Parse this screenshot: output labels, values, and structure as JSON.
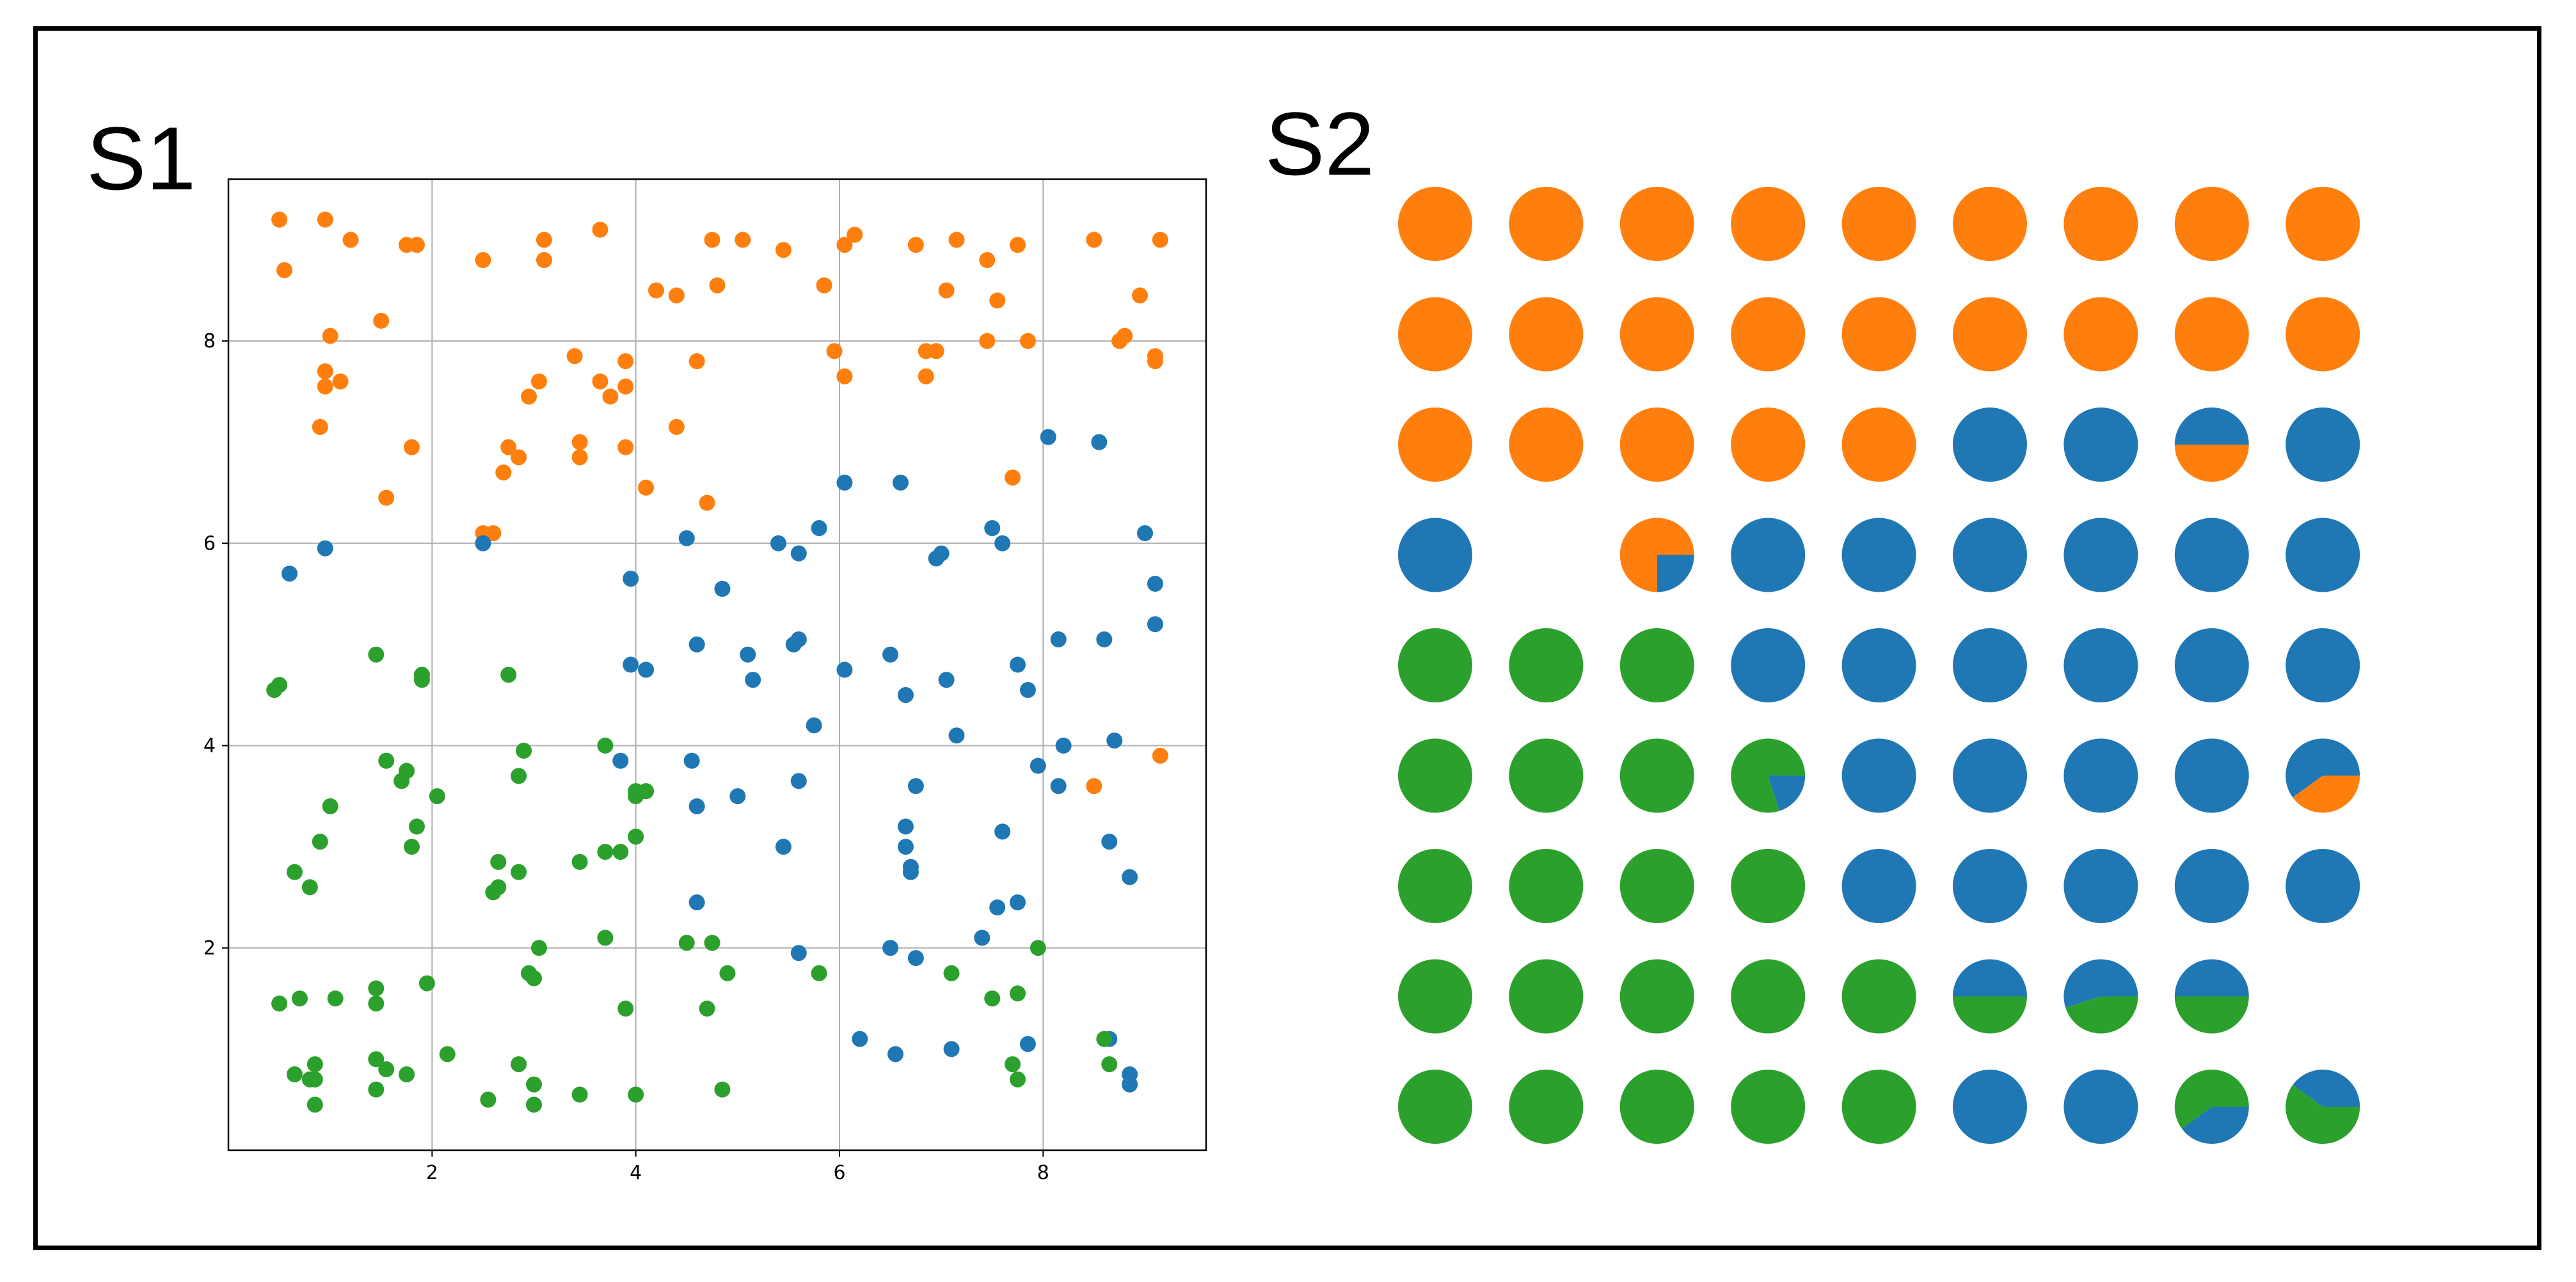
{
  "panels": {
    "s1_label": "S1",
    "s2_label": "S2"
  },
  "colors": {
    "orange": "#ff7f0e",
    "blue": "#1f77b4",
    "green": "#2ca02c",
    "grid": "#b0b0b0",
    "frame": "#000000"
  },
  "chart_data": [
    {
      "type": "scatter",
      "title": "",
      "xlabel": "",
      "ylabel": "",
      "xlim": [
        0.0,
        9.6
      ],
      "ylim": [
        0.0,
        9.6
      ],
      "xticks": [
        2,
        4,
        6,
        8
      ],
      "yticks": [
        2,
        4,
        6,
        8
      ],
      "grid": true,
      "series": [
        {
          "color": "#ff7f0e",
          "points": [
            [
              0.5,
              9.2
            ],
            [
              0.55,
              8.7
            ],
            [
              0.95,
              9.2
            ],
            [
              1.2,
              9.0
            ],
            [
              1.5,
              8.2
            ],
            [
              1.75,
              8.95
            ],
            [
              1.85,
              8.95
            ],
            [
              2.5,
              8.8
            ],
            [
              3.1,
              9.0
            ],
            [
              3.1,
              8.8
            ],
            [
              3.65,
              9.1
            ],
            [
              4.2,
              8.5
            ],
            [
              4.4,
              8.45
            ],
            [
              4.75,
              9.0
            ],
            [
              4.8,
              8.55
            ],
            [
              5.05,
              9.0
            ],
            [
              5.45,
              8.9
            ],
            [
              5.85,
              8.55
            ],
            [
              6.05,
              8.95
            ],
            [
              6.15,
              9.05
            ],
            [
              6.75,
              8.95
            ],
            [
              7.15,
              9.0
            ],
            [
              7.05,
              8.5
            ],
            [
              7.45,
              8.8
            ],
            [
              7.55,
              8.4
            ],
            [
              7.75,
              8.95
            ],
            [
              8.5,
              9.0
            ],
            [
              8.95,
              8.45
            ],
            [
              9.15,
              9.0
            ],
            [
              1.0,
              8.05
            ],
            [
              0.95,
              7.7
            ],
            [
              0.95,
              7.55
            ],
            [
              1.1,
              7.6
            ],
            [
              0.9,
              7.15
            ],
            [
              1.55,
              6.45
            ],
            [
              1.8,
              6.95
            ],
            [
              2.5,
              6.1
            ],
            [
              2.6,
              6.1
            ],
            [
              2.7,
              6.7
            ],
            [
              2.75,
              6.95
            ],
            [
              2.85,
              6.85
            ],
            [
              2.95,
              7.45
            ],
            [
              3.05,
              7.6
            ],
            [
              3.4,
              7.85
            ],
            [
              3.45,
              7.0
            ],
            [
              3.45,
              6.85
            ],
            [
              3.65,
              7.6
            ],
            [
              3.75,
              7.45
            ],
            [
              3.9,
              7.8
            ],
            [
              3.9,
              7.55
            ],
            [
              3.9,
              6.95
            ],
            [
              4.1,
              6.55
            ],
            [
              4.4,
              7.15
            ],
            [
              4.6,
              7.8
            ],
            [
              4.7,
              6.4
            ],
            [
              5.95,
              7.9
            ],
            [
              6.05,
              7.65
            ],
            [
              6.85,
              7.9
            ],
            [
              6.85,
              7.65
            ],
            [
              6.95,
              7.9
            ],
            [
              7.45,
              8.0
            ],
            [
              7.7,
              6.65
            ],
            [
              7.85,
              8.0
            ],
            [
              8.75,
              8.0
            ],
            [
              8.8,
              8.05
            ],
            [
              9.1,
              7.8
            ],
            [
              9.1,
              7.85
            ],
            [
              8.5,
              3.6
            ],
            [
              9.15,
              3.9
            ]
          ]
        },
        {
          "color": "#1f77b4",
          "points": [
            [
              0.6,
              5.7
            ],
            [
              0.95,
              5.95
            ],
            [
              2.5,
              6.0
            ],
            [
              3.95,
              5.65
            ],
            [
              4.5,
              6.05
            ],
            [
              4.85,
              5.55
            ],
            [
              5.4,
              6.0
            ],
            [
              5.6,
              5.9
            ],
            [
              5.8,
              6.15
            ],
            [
              6.05,
              6.6
            ],
            [
              6.6,
              6.6
            ],
            [
              6.95,
              5.85
            ],
            [
              7.0,
              5.9
            ],
            [
              7.5,
              6.15
            ],
            [
              7.6,
              6.0
            ],
            [
              8.05,
              7.05
            ],
            [
              8.55,
              7.0
            ],
            [
              9.0,
              6.1
            ],
            [
              9.1,
              5.6
            ],
            [
              3.95,
              4.8
            ],
            [
              4.1,
              4.75
            ],
            [
              4.6,
              5.0
            ],
            [
              5.1,
              4.9
            ],
            [
              5.15,
              4.65
            ],
            [
              5.55,
              5.0
            ],
            [
              5.6,
              5.05
            ],
            [
              6.05,
              4.75
            ],
            [
              6.5,
              4.9
            ],
            [
              6.65,
              4.5
            ],
            [
              7.05,
              4.65
            ],
            [
              7.75,
              4.8
            ],
            [
              7.85,
              4.55
            ],
            [
              8.15,
              5.05
            ],
            [
              8.6,
              5.05
            ],
            [
              9.1,
              5.2
            ],
            [
              3.85,
              3.85
            ],
            [
              4.55,
              3.85
            ],
            [
              4.6,
              3.4
            ],
            [
              5.0,
              3.5
            ],
            [
              5.45,
              3.0
            ],
            [
              5.6,
              3.65
            ],
            [
              5.75,
              4.2
            ],
            [
              6.65,
              3.0
            ],
            [
              6.65,
              3.2
            ],
            [
              6.7,
              2.75
            ],
            [
              6.7,
              2.8
            ],
            [
              6.75,
              3.6
            ],
            [
              7.15,
              4.1
            ],
            [
              7.6,
              3.15
            ],
            [
              7.95,
              3.8
            ],
            [
              8.15,
              3.6
            ],
            [
              8.2,
              4.0
            ],
            [
              8.65,
              3.05
            ],
            [
              8.7,
              4.05
            ],
            [
              8.85,
              2.7
            ],
            [
              4.6,
              2.45
            ],
            [
              5.6,
              1.95
            ],
            [
              6.5,
              2.0
            ],
            [
              6.75,
              1.9
            ],
            [
              7.4,
              2.1
            ],
            [
              7.55,
              2.4
            ],
            [
              7.75,
              2.45
            ],
            [
              6.2,
              1.1
            ],
            [
              6.55,
              0.95
            ],
            [
              7.1,
              1.0
            ],
            [
              7.85,
              1.05
            ],
            [
              8.65,
              1.1
            ],
            [
              8.85,
              0.75
            ],
            [
              8.85,
              0.65
            ]
          ]
        },
        {
          "color": "#2ca02c",
          "points": [
            [
              0.45,
              4.55
            ],
            [
              0.5,
              4.6
            ],
            [
              1.45,
              4.9
            ],
            [
              1.9,
              4.7
            ],
            [
              1.9,
              4.65
            ],
            [
              2.75,
              4.7
            ],
            [
              1.55,
              3.85
            ],
            [
              1.7,
              3.65
            ],
            [
              1.75,
              3.75
            ],
            [
              1.85,
              3.2
            ],
            [
              2.05,
              3.5
            ],
            [
              1.0,
              3.4
            ],
            [
              0.9,
              3.05
            ],
            [
              0.65,
              2.75
            ],
            [
              0.8,
              2.6
            ],
            [
              1.8,
              3.0
            ],
            [
              2.85,
              3.7
            ],
            [
              2.9,
              3.95
            ],
            [
              2.65,
              2.85
            ],
            [
              2.65,
              2.6
            ],
            [
              2.6,
              2.55
            ],
            [
              2.85,
              2.75
            ],
            [
              3.45,
              2.85
            ],
            [
              3.7,
              2.95
            ],
            [
              3.7,
              4.0
            ],
            [
              3.85,
              2.95
            ],
            [
              4.0,
              3.5
            ],
            [
              4.0,
              3.55
            ],
            [
              4.1,
              3.55
            ],
            [
              4.0,
              3.1
            ],
            [
              3.05,
              2.0
            ],
            [
              3.7,
              2.1
            ],
            [
              4.5,
              2.05
            ],
            [
              4.75,
              2.05
            ],
            [
              2.95,
              1.75
            ],
            [
              3.0,
              1.7
            ],
            [
              4.9,
              1.75
            ],
            [
              5.8,
              1.75
            ],
            [
              7.1,
              1.75
            ],
            [
              7.5,
              1.5
            ],
            [
              7.75,
              1.55
            ],
            [
              7.95,
              2.0
            ],
            [
              0.5,
              1.45
            ],
            [
              0.7,
              1.5
            ],
            [
              1.05,
              1.5
            ],
            [
              1.45,
              1.6
            ],
            [
              1.45,
              1.45
            ],
            [
              1.95,
              1.65
            ],
            [
              3.9,
              1.4
            ],
            [
              4.7,
              1.4
            ],
            [
              1.45,
              0.9
            ],
            [
              1.55,
              0.8
            ],
            [
              1.75,
              0.75
            ],
            [
              2.15,
              0.95
            ],
            [
              0.65,
              0.75
            ],
            [
              0.8,
              0.7
            ],
            [
              0.85,
              0.85
            ],
            [
              0.85,
              0.7
            ],
            [
              0.85,
              0.45
            ],
            [
              1.45,
              0.6
            ],
            [
              2.55,
              0.5
            ],
            [
              2.85,
              0.85
            ],
            [
              3.0,
              0.65
            ],
            [
              3.0,
              0.45
            ],
            [
              3.45,
              0.55
            ],
            [
              4.0,
              0.55
            ],
            [
              4.85,
              0.6
            ],
            [
              7.7,
              0.85
            ],
            [
              7.75,
              0.7
            ],
            [
              8.6,
              1.1
            ],
            [
              8.65,
              0.85
            ]
          ]
        }
      ]
    },
    {
      "type": "pie-grid",
      "title": "",
      "rows": 9,
      "cols": 9,
      "legend": "none",
      "cells": [
        [
          "O",
          "O",
          "O",
          "O",
          "O",
          "O",
          "O",
          "O",
          "O"
        ],
        [
          "O",
          "O",
          "O",
          "O",
          "O",
          "O",
          "O",
          "O",
          "O"
        ],
        [
          "O",
          "O",
          "O",
          "O",
          "O",
          "B",
          "B",
          "BO50",
          "B"
        ],
        [
          "B",
          "-",
          "OB75",
          "B",
          "B",
          "B",
          "B",
          "B",
          "B"
        ],
        [
          "G",
          "G",
          "G",
          "B",
          "B",
          "B",
          "B",
          "B",
          "B"
        ],
        [
          "G",
          "G",
          "G",
          "GB80",
          "B",
          "B",
          "B",
          "B",
          "BO60"
        ],
        [
          "G",
          "G",
          "G",
          "G",
          "B",
          "B",
          "B",
          "B",
          "B"
        ],
        [
          "G",
          "G",
          "G",
          "G",
          "G",
          "BG50",
          "BG55",
          "BG50",
          "-"
        ],
        [
          "G",
          "G",
          "G",
          "G",
          "G",
          "B",
          "B",
          "GB60",
          "BG40"
        ]
      ],
      "cell_legend": {
        "O": "orange",
        "B": "blue",
        "G": "green",
        "-": "empty"
      }
    }
  ]
}
